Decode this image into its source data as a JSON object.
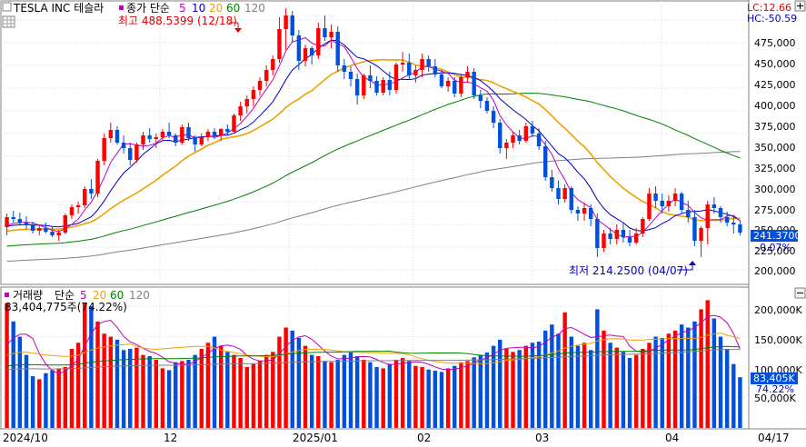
{
  "header": {
    "title": "TESLA INC  테슬라",
    "ma_prefix": "종가 단순",
    "ma_periods": [
      {
        "label": "5",
        "color": "#c000c0"
      },
      {
        "label": "10",
        "color": "#0000c0"
      },
      {
        "label": "20",
        "color": "#f0a000"
      },
      {
        "label": "60",
        "color": "#008000"
      },
      {
        "label": "120",
        "color": "#808080"
      }
    ],
    "lc": "LC:12.66",
    "hc": "HC:-50.59"
  },
  "annotations": {
    "high": "최고 488.5399 (12/18)",
    "low": "최저 214.2500 (04/07)"
  },
  "price_axis": {
    "ticks": [
      "475,000",
      "450,000",
      "425,000",
      "400,000",
      "375,000",
      "350,000",
      "325,000",
      "300,000",
      "275,000",
      "250,000",
      "225,000",
      "200,000"
    ],
    "current_price": "241.3700",
    "current_change": "-0.07%"
  },
  "volume": {
    "title": "거래량",
    "ma_prefix": "단순",
    "ma_periods": [
      {
        "label": "5",
        "color": "#c000c0"
      },
      {
        "label": "20",
        "color": "#f0a000"
      },
      {
        "label": "60",
        "color": "#008000"
      },
      {
        "label": "120",
        "color": "#808080"
      }
    ],
    "info": "83,404,775주(74.22%)",
    "ticks": [
      "200,000K",
      "150,000K",
      "100,000K",
      "50,000K"
    ],
    "current": "83,405K",
    "current_pct": "74.22%"
  },
  "x_axis": {
    "labels": [
      "2024/10",
      "12",
      "2025/01",
      "02",
      "03",
      "04",
      "04/17"
    ]
  },
  "colors": {
    "up": "#ff0000",
    "down": "#0050dc",
    "ma5": "#c000c0",
    "ma10": "#0000c0",
    "ma20": "#f0a000",
    "ma60": "#008000",
    "ma120": "#808080"
  },
  "chart_data": {
    "type": "candlestick",
    "symbol": "TESLA INC",
    "price_range": [
      185,
      495
    ],
    "volume_range_k": [
      0,
      230000
    ],
    "x_labels": [
      "2024/10",
      "12",
      "2025/01",
      "02",
      "03",
      "04"
    ],
    "ohlc": [
      [
        247,
        262,
        238,
        258
      ],
      [
        258,
        265,
        252,
        256
      ],
      [
        256,
        263,
        250,
        252
      ],
      [
        252,
        259,
        245,
        249
      ],
      [
        249,
        253,
        240,
        243
      ],
      [
        243,
        250,
        238,
        246
      ],
      [
        246,
        252,
        240,
        242
      ],
      [
        242,
        247,
        236,
        238
      ],
      [
        238,
        244,
        232,
        241
      ],
      [
        241,
        262,
        239,
        260
      ],
      [
        260,
        272,
        256,
        269
      ],
      [
        269,
        275,
        262,
        271
      ],
      [
        271,
        292,
        268,
        289
      ],
      [
        289,
        300,
        278,
        284
      ],
      [
        284,
        322,
        280,
        320
      ],
      [
        320,
        350,
        315,
        345
      ],
      [
        345,
        362,
        340,
        354
      ],
      [
        354,
        358,
        338,
        340
      ],
      [
        340,
        348,
        328,
        334
      ],
      [
        334,
        340,
        315,
        321
      ],
      [
        321,
        340,
        318,
        338
      ],
      [
        338,
        352,
        332,
        348
      ],
      [
        348,
        356,
        340,
        344
      ],
      [
        344,
        350,
        334,
        346
      ],
      [
        346,
        355,
        342,
        352
      ],
      [
        352,
        362,
        345,
        348
      ],
      [
        348,
        350,
        336,
        340
      ],
      [
        340,
        360,
        338,
        357
      ],
      [
        357,
        362,
        342,
        345
      ],
      [
        345,
        348,
        330,
        338
      ],
      [
        338,
        350,
        336,
        346
      ],
      [
        346,
        355,
        342,
        352
      ],
      [
        352,
        356,
        344,
        348
      ],
      [
        348,
        356,
        342,
        355
      ],
      [
        355,
        360,
        348,
        352
      ],
      [
        352,
        372,
        350,
        370
      ],
      [
        370,
        385,
        364,
        380
      ],
      [
        380,
        392,
        372,
        388
      ],
      [
        388,
        402,
        380,
        398
      ],
      [
        398,
        412,
        392,
        408
      ],
      [
        408,
        425,
        402,
        420
      ],
      [
        420,
        436,
        414,
        432
      ],
      [
        432,
        478,
        428,
        465
      ],
      [
        465,
        488,
        442,
        480
      ],
      [
        480,
        485,
        450,
        458
      ],
      [
        458,
        464,
        420,
        430
      ],
      [
        430,
        448,
        424,
        444
      ],
      [
        444,
        446,
        426,
        436
      ],
      [
        436,
        472,
        432,
        466
      ],
      [
        466,
        480,
        452,
        456
      ],
      [
        456,
        470,
        444,
        462
      ],
      [
        462,
        468,
        418,
        425
      ],
      [
        425,
        432,
        410,
        418
      ],
      [
        418,
        424,
        402,
        410
      ],
      [
        410,
        416,
        382,
        392
      ],
      [
        392,
        416,
        388,
        414
      ],
      [
        414,
        425,
        400,
        408
      ],
      [
        408,
        413,
        392,
        395
      ],
      [
        395,
        412,
        392,
        409
      ],
      [
        409,
        418,
        392,
        398
      ],
      [
        398,
        428,
        394,
        426
      ],
      [
        426,
        440,
        418,
        428
      ],
      [
        428,
        438,
        410,
        414
      ],
      [
        414,
        425,
        406,
        420
      ],
      [
        420,
        438,
        412,
        432
      ],
      [
        432,
        436,
        418,
        424
      ],
      [
        424,
        432,
        412,
        415
      ],
      [
        415,
        420,
        400,
        402
      ],
      [
        402,
        412,
        396,
        408
      ],
      [
        408,
        412,
        390,
        394
      ],
      [
        394,
        416,
        390,
        412
      ],
      [
        412,
        424,
        406,
        418
      ],
      [
        418,
        422,
        388,
        392
      ],
      [
        392,
        398,
        378,
        386
      ],
      [
        386,
        390,
        372,
        375
      ],
      [
        375,
        380,
        356,
        362
      ],
      [
        362,
        366,
        328,
        334
      ],
      [
        334,
        344,
        322,
        340
      ],
      [
        340,
        352,
        334,
        348
      ],
      [
        348,
        354,
        338,
        342
      ],
      [
        342,
        362,
        340,
        358
      ],
      [
        358,
        364,
        346,
        350
      ],
      [
        350,
        356,
        332,
        336
      ],
      [
        336,
        342,
        298,
        302
      ],
      [
        302,
        310,
        286,
        290
      ],
      [
        290,
        298,
        272,
        278
      ],
      [
        278,
        294,
        274,
        290
      ],
      [
        290,
        292,
        262,
        266
      ],
      [
        266,
        270,
        254,
        262
      ],
      [
        262,
        274,
        254,
        268
      ],
      [
        268,
        272,
        248,
        256
      ],
      [
        256,
        262,
        214,
        224
      ],
      [
        224,
        244,
        220,
        240
      ],
      [
        240,
        246,
        228,
        234
      ],
      [
        234,
        250,
        228,
        244
      ],
      [
        244,
        252,
        230,
        236
      ],
      [
        236,
        244,
        226,
        230
      ],
      [
        230,
        246,
        228,
        240
      ],
      [
        240,
        258,
        236,
        256
      ],
      [
        256,
        290,
        254,
        284
      ],
      [
        284,
        292,
        268,
        276
      ],
      [
        276,
        284,
        262,
        270
      ],
      [
        270,
        282,
        264,
        276
      ],
      [
        276,
        290,
        270,
        284
      ],
      [
        284,
        286,
        262,
        266
      ],
      [
        266,
        276,
        252,
        258
      ],
      [
        258,
        266,
        226,
        232
      ],
      [
        232,
        248,
        214,
        246
      ],
      [
        246,
        276,
        228,
        272
      ],
      [
        272,
        280,
        262,
        268
      ],
      [
        268,
        270,
        252,
        258
      ],
      [
        258,
        264,
        248,
        252
      ],
      [
        252,
        258,
        240,
        250
      ],
      [
        250,
        254,
        238,
        241
      ]
    ],
    "volume_k": [
      205000,
      175000,
      150000,
      120000,
      85000,
      80000,
      90000,
      95000,
      98000,
      100000,
      130000,
      140000,
      205000,
      200000,
      175000,
      155000,
      150000,
      145000,
      128000,
      130000,
      132000,
      120000,
      118000,
      112000,
      98000,
      95000,
      108000,
      110000,
      112000,
      120000,
      130000,
      140000,
      150000,
      135000,
      125000,
      120000,
      115000,
      100000,
      105000,
      110000,
      120000,
      125000,
      150000,
      165000,
      160000,
      148000,
      135000,
      120000,
      118000,
      110000,
      108000,
      112000,
      120000,
      125000,
      118000,
      112000,
      108000,
      100000,
      98000,
      105000,
      112000,
      115000,
      110000,
      102000,
      100000,
      96000,
      94000,
      92000,
      98000,
      102000,
      108000,
      110000,
      116000,
      120000,
      124000,
      135000,
      145000,
      130000,
      125000,
      128000,
      135000,
      140000,
      142000,
      160000,
      170000,
      155000,
      190000,
      150000,
      135000,
      140000,
      128000,
      195000,
      160000,
      140000,
      132000,
      125000,
      115000,
      120000,
      130000,
      140000,
      150000,
      148000,
      155000,
      160000,
      170000,
      165000,
      175000,
      195000,
      210000,
      180000,
      150000,
      130000,
      105000,
      83405
    ]
  }
}
